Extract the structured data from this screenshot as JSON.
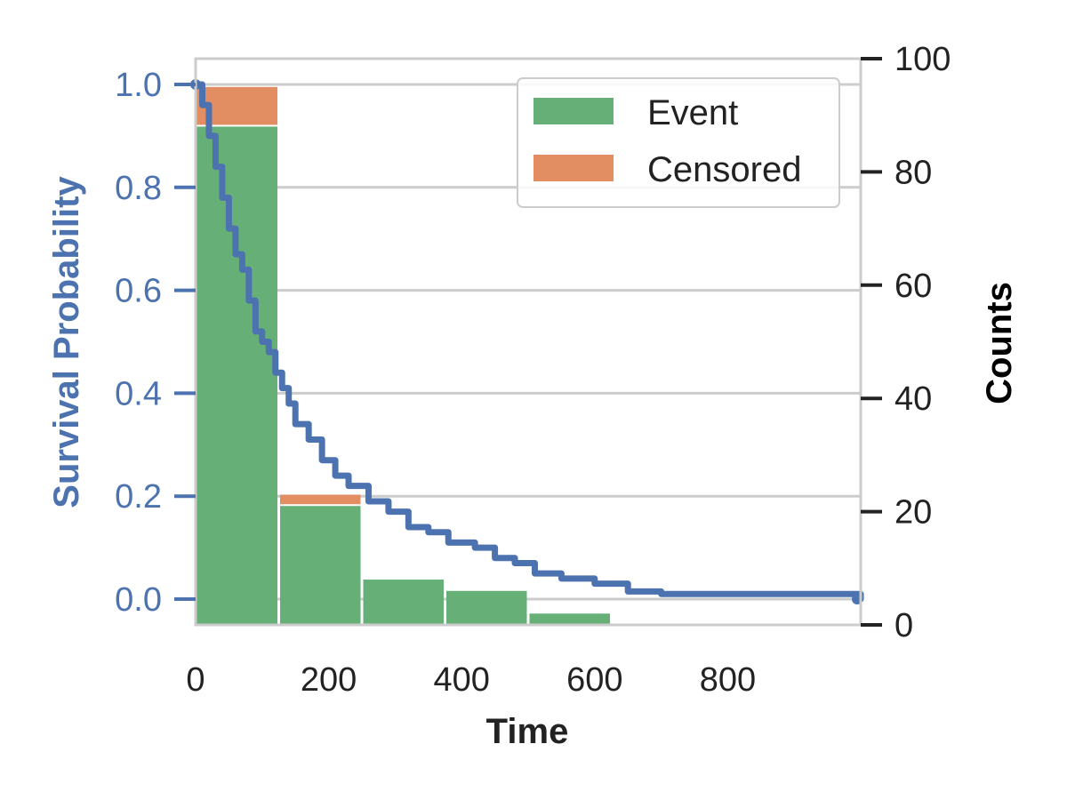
{
  "chart_data": {
    "type": "bar+line",
    "x_label": "Time",
    "y_left_label": "Survival Probability",
    "y_right_label": "Counts",
    "x_ticks": [
      "0",
      "200",
      "400",
      "600",
      "800"
    ],
    "y_left_ticks": [
      "0.0",
      "0.2",
      "0.4",
      "0.6",
      "0.8",
      "1.0"
    ],
    "y_right_ticks": [
      "0",
      "20",
      "40",
      "60",
      "80",
      "100"
    ],
    "x_range": [
      0,
      1000
    ],
    "y_left_range": [
      -0.05,
      1.05
    ],
    "y_right_range": [
      0,
      100
    ],
    "grid": true,
    "legend_position": "top-right",
    "legend": [
      {
        "label": "Event",
        "color": "#66b077"
      },
      {
        "label": "Censored",
        "color": "#e28e62"
      }
    ],
    "bins": [
      {
        "x0": 0,
        "x1": 125,
        "event": 88,
        "censored": 7
      },
      {
        "x0": 125,
        "x1": 250,
        "event": 21,
        "censored": 2
      },
      {
        "x0": 250,
        "x1": 375,
        "event": 8,
        "censored": 0
      },
      {
        "x0": 375,
        "x1": 500,
        "event": 6,
        "censored": 0
      },
      {
        "x0": 500,
        "x1": 625,
        "event": 2,
        "censored": 0
      },
      {
        "x0": 625,
        "x1": 750,
        "event": 0,
        "censored": 0
      },
      {
        "x0": 750,
        "x1": 875,
        "event": 0,
        "censored": 0
      },
      {
        "x0": 875,
        "x1": 1000,
        "event": 0,
        "censored": 0
      }
    ],
    "survival": {
      "color": "#4c72b0",
      "points": [
        [
          0,
          1.0
        ],
        [
          10,
          0.96
        ],
        [
          20,
          0.9
        ],
        [
          30,
          0.84
        ],
        [
          40,
          0.78
        ],
        [
          50,
          0.72
        ],
        [
          60,
          0.67
        ],
        [
          70,
          0.64
        ],
        [
          80,
          0.58
        ],
        [
          90,
          0.52
        ],
        [
          100,
          0.5
        ],
        [
          110,
          0.48
        ],
        [
          120,
          0.44
        ],
        [
          130,
          0.41
        ],
        [
          140,
          0.38
        ],
        [
          150,
          0.34
        ],
        [
          170,
          0.31
        ],
        [
          190,
          0.27
        ],
        [
          210,
          0.24
        ],
        [
          230,
          0.22
        ],
        [
          260,
          0.19
        ],
        [
          290,
          0.17
        ],
        [
          320,
          0.14
        ],
        [
          350,
          0.13
        ],
        [
          380,
          0.11
        ],
        [
          420,
          0.1
        ],
        [
          450,
          0.08
        ],
        [
          480,
          0.07
        ],
        [
          510,
          0.05
        ],
        [
          550,
          0.04
        ],
        [
          600,
          0.03
        ],
        [
          650,
          0.015
        ],
        [
          700,
          0.01
        ],
        [
          800,
          0.01
        ],
        [
          900,
          0.01
        ],
        [
          980,
          0.01
        ],
        [
          1000,
          0.0
        ]
      ]
    }
  }
}
